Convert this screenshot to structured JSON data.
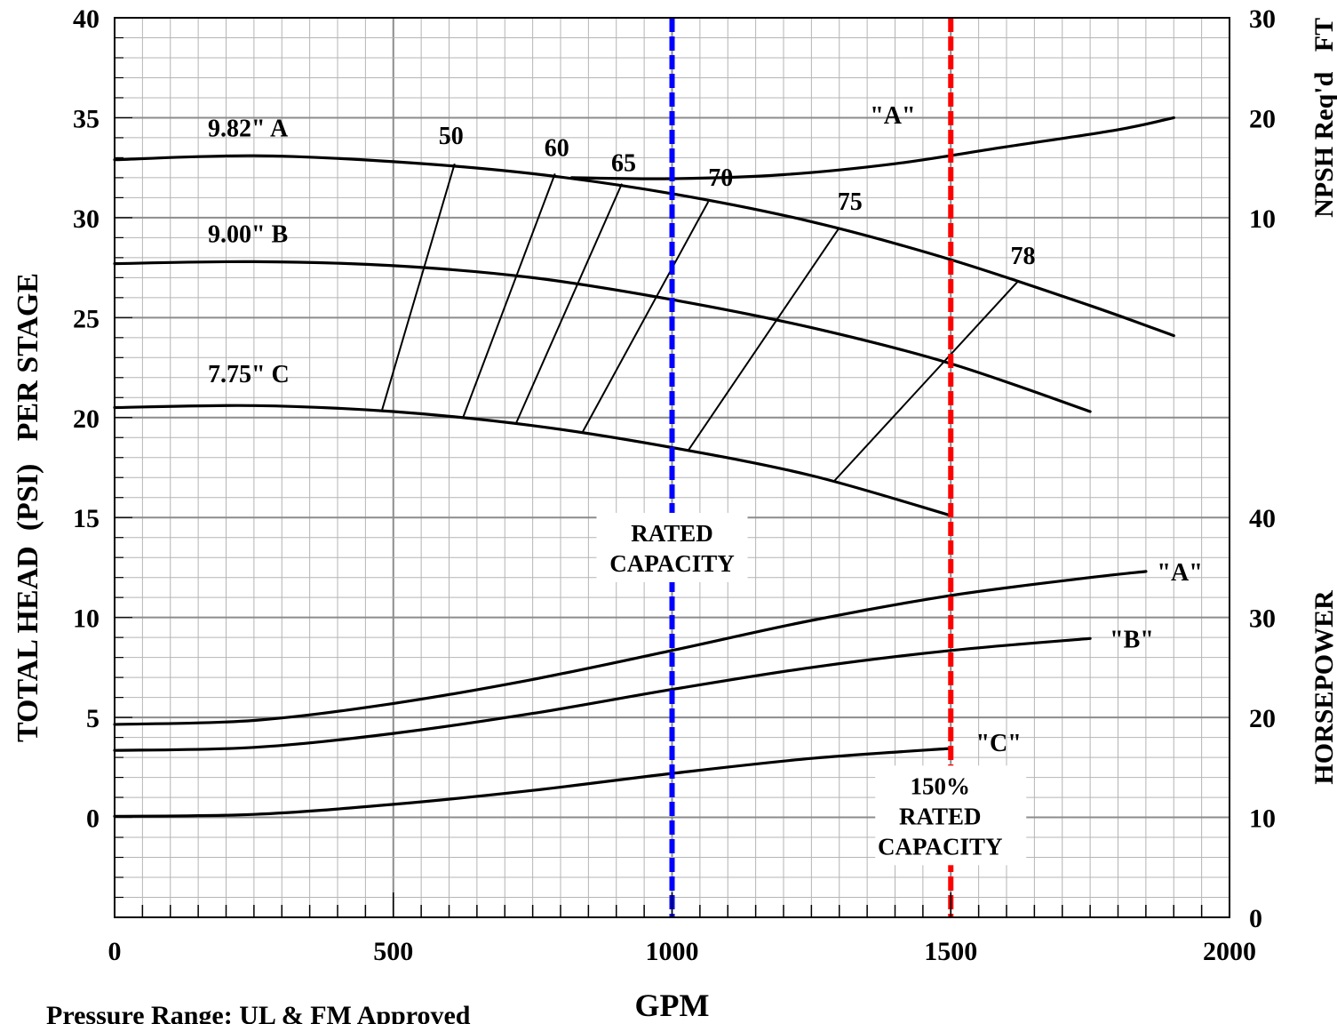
{
  "chart_data": {
    "type": "line",
    "xlabel": "GPM",
    "ylabel_left": "TOTAL HEAD  (PSI)   PER STAGE",
    "ylabel_right_top": "NPSH Req'd   FT",
    "ylabel_right_bottom": "HORSEPOWER",
    "footnote": "Pressure Range: UL & FM Approved",
    "xlim": [
      0,
      2000
    ],
    "ylim": [
      -5,
      40
    ],
    "x_ticks": [
      0,
      500,
      1000,
      1500,
      2000
    ],
    "x_tick_labels": [
      "0",
      "500",
      "1000",
      "1500",
      "2000"
    ],
    "y_left_ticks": [
      0,
      5,
      10,
      15,
      20,
      25,
      30,
      35,
      40
    ],
    "y_left_tick_labels": [
      "0",
      "5",
      "10",
      "15",
      "20",
      "25",
      "30",
      "35",
      "40"
    ],
    "npsh_axis": {
      "ticks": [
        10,
        20,
        30
      ],
      "labels": [
        "10",
        "20",
        "30"
      ]
    },
    "hp_axis": {
      "ticks": [
        0,
        10,
        20,
        30,
        40
      ],
      "labels": [
        "0",
        "10",
        "20",
        "30",
        "40"
      ]
    },
    "grid": true,
    "colors": {
      "rated": "#0000ff",
      "overload": "#ff0000",
      "curve": "#000000",
      "grid_minor": "#b4b4b4",
      "grid_major": "#8c8c8c"
    },
    "head_curves": [
      {
        "name": "9.82\" A",
        "x": [
          0,
          250,
          500,
          750,
          1000,
          1250,
          1500,
          1750,
          1900
        ],
        "y": [
          32.9,
          33.1,
          32.8,
          32.2,
          31.2,
          29.8,
          27.9,
          25.6,
          24.1
        ]
      },
      {
        "name": "9.00\" B",
        "x": [
          0,
          250,
          500,
          750,
          1000,
          1250,
          1500,
          1750
        ],
        "y": [
          27.7,
          27.8,
          27.6,
          27.0,
          25.9,
          24.5,
          22.7,
          20.3
        ]
      },
      {
        "name": "7.75\" C",
        "x": [
          0,
          250,
          500,
          750,
          1000,
          1250,
          1500
        ],
        "y": [
          20.5,
          20.6,
          20.3,
          19.6,
          18.5,
          17.1,
          15.1
        ]
      }
    ],
    "efficiency_lines": [
      {
        "label": "50",
        "x": [
          480,
          610
        ],
        "y": [
          20.4,
          32.7
        ]
      },
      {
        "label": "60",
        "x": [
          625,
          790
        ],
        "y": [
          20.0,
          32.2
        ]
      },
      {
        "label": "65",
        "x": [
          720,
          910
        ],
        "y": [
          19.7,
          31.7
        ]
      },
      {
        "label": "70",
        "x": [
          840,
          1065
        ],
        "y": [
          19.3,
          30.8
        ]
      },
      {
        "label": "75",
        "x": [
          1030,
          1300
        ],
        "y": [
          18.4,
          29.5
        ]
      },
      {
        "label": "78",
        "x": [
          1290,
          1620
        ],
        "y": [
          16.8,
          26.8
        ]
      }
    ],
    "npsh_curve": {
      "name": "\"A\"",
      "x": [
        820,
        1000,
        1200,
        1400,
        1600,
        1800,
        1900
      ],
      "y": [
        14.0,
        13.9,
        14.3,
        15.4,
        17.1,
        18.8,
        20.0
      ]
    },
    "hp_curves": [
      {
        "name": "\"A\"",
        "x": [
          0,
          250,
          500,
          750,
          1000,
          1250,
          1500,
          1750,
          1850
        ],
        "y": [
          19.3,
          19.7,
          21.4,
          23.8,
          26.7,
          29.7,
          32.2,
          34.0,
          34.6
        ]
      },
      {
        "name": "\"B\"",
        "x": [
          0,
          250,
          500,
          750,
          1000,
          1250,
          1500,
          1750
        ],
        "y": [
          16.7,
          17.0,
          18.4,
          20.4,
          22.8,
          25.0,
          26.7,
          27.9
        ]
      },
      {
        "name": "\"C\"",
        "x": [
          0,
          250,
          500,
          750,
          1000,
          1250,
          1500
        ],
        "y": [
          10.1,
          10.3,
          11.3,
          12.7,
          14.4,
          15.9,
          16.9
        ]
      }
    ],
    "reference_lines": [
      {
        "x": 1000,
        "label_lines": [
          "RATED",
          "CAPACITY"
        ],
        "color": "#0000ff"
      },
      {
        "x": 1500,
        "label_lines": [
          "150%",
          "RATED",
          "CAPACITY"
        ],
        "color": "#ff0000"
      }
    ]
  }
}
